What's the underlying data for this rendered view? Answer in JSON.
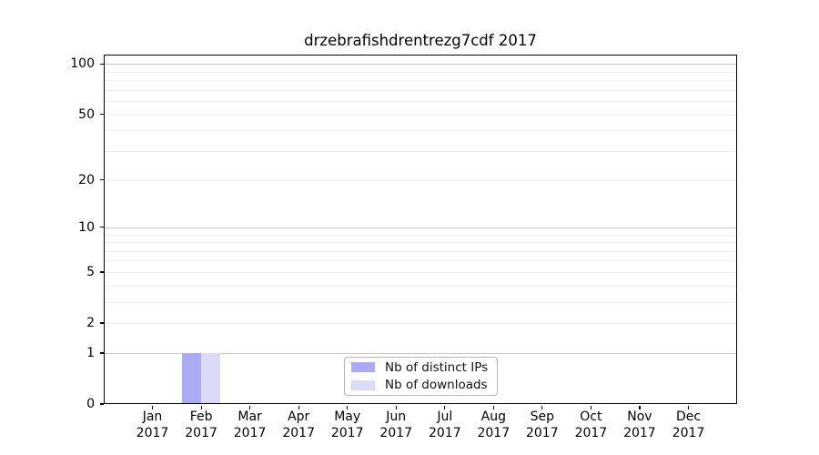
{
  "chart_data": {
    "type": "bar",
    "title": "drzebrafishdrentrezg7cdf 2017",
    "xlabel": "",
    "ylabel": "",
    "yscale": "log1p",
    "ylim": [
      0,
      115
    ],
    "yticks": [
      0,
      1,
      2,
      5,
      10,
      20,
      50,
      100
    ],
    "grid": "horizontal minor gridlines at 2-9 and 20-90, emphasized lines at 1, 10, 100",
    "legend_position": "lower center inside plot",
    "categories": [
      {
        "month": "Jan",
        "year": "2017"
      },
      {
        "month": "Feb",
        "year": "2017"
      },
      {
        "month": "Mar",
        "year": "2017"
      },
      {
        "month": "Apr",
        "year": "2017"
      },
      {
        "month": "May",
        "year": "2017"
      },
      {
        "month": "Jun",
        "year": "2017"
      },
      {
        "month": "Jul",
        "year": "2017"
      },
      {
        "month": "Aug",
        "year": "2017"
      },
      {
        "month": "Sep",
        "year": "2017"
      },
      {
        "month": "Oct",
        "year": "2017"
      },
      {
        "month": "Nov",
        "year": "2017"
      },
      {
        "month": "Dec",
        "year": "2017"
      }
    ],
    "series": [
      {
        "name": "Nb of distinct IPs",
        "color": "#aaaaf5",
        "values": [
          0,
          1,
          0,
          0,
          0,
          0,
          0,
          0,
          0,
          0,
          0,
          0
        ]
      },
      {
        "name": "Nb of downloads",
        "color": "#dbdbf8",
        "values": [
          0,
          1,
          0,
          0,
          0,
          0,
          0,
          0,
          0,
          0,
          0,
          0
        ]
      }
    ]
  },
  "colors": {
    "background": "#ffffff",
    "spine": "#000000",
    "grid_major": "#c6c6c6",
    "grid_minor": "#efefef",
    "legend_border": "#b5b5b5",
    "text": "#000000"
  }
}
